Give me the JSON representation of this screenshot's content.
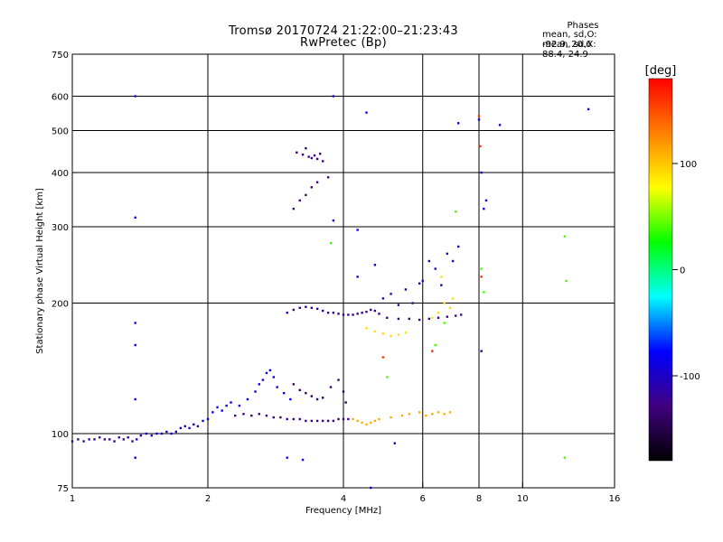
{
  "chart_data": {
    "type": "scatter",
    "title": "Tromsø 20170724 21:22:00–21:23:43",
    "subtitle": "RwPretec (Bp)",
    "stats": {
      "heading": "Phases",
      "line_o": "mean, sd,O: -92.9, 20.6",
      "line_x": "mean, sd,X:  88.4, 24.9"
    },
    "xlabel": "Frequency [MHz]",
    "ylabel": "Stationary phase Virtual Height [km]",
    "x_scale": "log",
    "y_scale": "log",
    "xlim": [
      1,
      16
    ],
    "ylim": [
      75,
      750
    ],
    "x_ticks": [
      1,
      2,
      4,
      6,
      8,
      10,
      16
    ],
    "x_tick_labels": [
      "1",
      "2",
      "4",
      "6",
      "8",
      "10",
      "16"
    ],
    "x_gridlines": [
      2,
      4,
      6,
      8,
      10
    ],
    "y_ticks": [
      75,
      100,
      200,
      300,
      400,
      500,
      600,
      750
    ],
    "y_tick_labels": [
      "75",
      "100",
      "200",
      "300",
      "400",
      "500",
      "600",
      "750"
    ],
    "y_gridlines": [
      100,
      200,
      300,
      400,
      500,
      600
    ],
    "grid": true,
    "colorbar": {
      "label": "[deg]",
      "range": [
        -180,
        180
      ],
      "ticks": [
        100,
        0,
        -100
      ],
      "tick_labels": [
        "100",
        "0",
        "-100"
      ],
      "colors": [
        "#ff0000",
        "#ff8000",
        "#ffff00",
        "#00ff00",
        "#00ffff",
        "#0000ff",
        "#400080",
        "#000000"
      ]
    },
    "series": [
      {
        "comment_phase": -115,
        "points": [
          [
            1.0,
            96
          ],
          [
            1.03,
            97
          ],
          [
            1.06,
            96
          ],
          [
            1.09,
            97
          ],
          [
            1.12,
            97
          ],
          [
            1.15,
            98
          ],
          [
            1.18,
            97
          ],
          [
            1.21,
            97
          ],
          [
            1.24,
            96
          ],
          [
            1.27,
            98
          ],
          [
            1.3,
            97
          ],
          [
            1.33,
            98
          ],
          [
            1.36,
            96
          ],
          [
            1.39,
            97
          ]
        ]
      },
      {
        "comment_phase": -105,
        "points": [
          [
            1.42,
            99
          ],
          [
            1.46,
            100
          ],
          [
            1.5,
            99
          ],
          [
            1.54,
            100
          ],
          [
            1.58,
            100
          ],
          [
            1.62,
            101
          ],
          [
            1.66,
            100
          ],
          [
            1.7,
            101
          ],
          [
            1.74,
            103
          ],
          [
            1.78,
            104
          ],
          [
            1.82,
            103
          ],
          [
            1.86,
            105
          ],
          [
            1.9,
            104
          ]
        ]
      },
      {
        "comment_phase": -130,
        "points": [
          [
            2.3,
            110
          ],
          [
            2.4,
            111
          ],
          [
            2.5,
            110
          ],
          [
            2.6,
            111
          ],
          [
            2.7,
            110
          ],
          [
            2.8,
            109
          ],
          [
            2.9,
            109
          ],
          [
            3.0,
            108
          ],
          [
            3.1,
            108
          ],
          [
            3.2,
            108
          ],
          [
            3.3,
            107
          ],
          [
            3.4,
            107
          ],
          [
            3.5,
            107
          ],
          [
            3.6,
            107
          ],
          [
            3.7,
            107
          ],
          [
            3.8,
            107
          ],
          [
            3.9,
            108
          ],
          [
            4.0,
            108
          ],
          [
            4.1,
            108
          ]
        ]
      },
      {
        "comment_phase": -80,
        "points": [
          [
            1.95,
            107
          ],
          [
            2.0,
            108
          ],
          [
            2.05,
            112
          ],
          [
            2.1,
            115
          ],
          [
            2.15,
            113
          ],
          [
            2.2,
            116
          ],
          [
            2.25,
            118
          ],
          [
            2.35,
            116
          ],
          [
            2.45,
            120
          ],
          [
            2.55,
            125
          ],
          [
            2.6,
            130
          ],
          [
            2.65,
            133
          ],
          [
            2.7,
            138
          ],
          [
            2.75,
            140
          ],
          [
            2.8,
            135
          ],
          [
            2.85,
            128
          ],
          [
            2.95,
            124
          ],
          [
            3.05,
            120
          ]
        ]
      },
      {
        "comment_phase": -140,
        "points": [
          [
            3.1,
            130
          ],
          [
            3.2,
            126
          ],
          [
            3.3,
            124
          ],
          [
            3.4,
            122
          ],
          [
            3.5,
            120
          ],
          [
            3.6,
            121
          ],
          [
            3.75,
            128
          ],
          [
            3.9,
            133
          ],
          [
            4.0,
            125
          ],
          [
            4.05,
            118
          ]
        ]
      },
      {
        "comment_phase": 110,
        "points": [
          [
            4.2,
            108
          ],
          [
            4.3,
            107
          ],
          [
            4.4,
            106
          ],
          [
            4.5,
            105
          ],
          [
            4.6,
            106
          ],
          [
            4.7,
            107
          ],
          [
            4.8,
            108
          ],
          [
            5.1,
            109
          ],
          [
            5.4,
            110
          ],
          [
            5.6,
            111
          ],
          [
            5.9,
            112
          ],
          [
            6.1,
            110
          ],
          [
            6.3,
            111
          ],
          [
            6.5,
            112
          ],
          [
            6.7,
            111
          ],
          [
            6.9,
            112
          ]
        ]
      },
      {
        "comment_phase": -120,
        "points": [
          [
            3.0,
            190
          ],
          [
            3.1,
            193
          ],
          [
            3.2,
            195
          ],
          [
            3.3,
            196
          ],
          [
            3.4,
            195
          ],
          [
            3.5,
            194
          ],
          [
            3.6,
            192
          ],
          [
            3.7,
            190
          ],
          [
            3.8,
            190
          ],
          [
            3.9,
            189
          ],
          [
            4.0,
            188
          ],
          [
            4.1,
            188
          ],
          [
            4.2,
            188
          ],
          [
            4.3,
            189
          ],
          [
            4.4,
            190
          ],
          [
            4.5,
            191
          ],
          [
            4.6,
            193
          ],
          [
            4.7,
            192
          ],
          [
            4.8,
            189
          ]
        ]
      },
      {
        "comment_phase": -125,
        "points": [
          [
            5.0,
            185
          ],
          [
            5.3,
            184
          ],
          [
            5.6,
            184
          ],
          [
            5.9,
            183
          ],
          [
            6.2,
            184
          ],
          [
            6.5,
            185
          ],
          [
            6.8,
            186
          ],
          [
            7.1,
            187
          ],
          [
            7.3,
            188
          ]
        ]
      },
      {
        "comment_phase": -110,
        "points": [
          [
            4.9,
            205
          ],
          [
            5.1,
            210
          ],
          [
            5.3,
            198
          ],
          [
            5.5,
            215
          ],
          [
            5.7,
            200
          ],
          [
            5.9,
            222
          ],
          [
            6.0,
            225
          ],
          [
            6.2,
            250
          ],
          [
            6.4,
            240
          ],
          [
            6.6,
            220
          ],
          [
            6.8,
            260
          ],
          [
            7.0,
            250
          ],
          [
            7.2,
            270
          ],
          [
            4.7,
            245
          ],
          [
            4.3,
            230
          ]
        ]
      },
      {
        "comment_phase": 90,
        "points": [
          [
            4.5,
            175
          ],
          [
            4.7,
            172
          ],
          [
            4.9,
            170
          ],
          [
            5.1,
            168
          ],
          [
            5.3,
            169
          ],
          [
            5.5,
            171
          ],
          [
            6.3,
            185
          ],
          [
            6.5,
            190
          ],
          [
            6.7,
            200
          ],
          [
            6.6,
            230
          ],
          [
            6.9,
            195
          ],
          [
            7.0,
            205
          ]
        ]
      },
      {
        "comment_phase": -130,
        "points": [
          [
            3.1,
            330
          ],
          [
            3.2,
            345
          ],
          [
            3.3,
            355
          ],
          [
            3.4,
            370
          ],
          [
            3.5,
            380
          ],
          [
            3.15,
            445
          ],
          [
            3.25,
            440
          ],
          [
            3.35,
            435
          ],
          [
            3.4,
            432
          ],
          [
            3.45,
            438
          ],
          [
            3.5,
            430
          ],
          [
            3.55,
            442
          ],
          [
            3.6,
            425
          ],
          [
            3.3,
            455
          ],
          [
            3.7,
            390
          ]
        ]
      },
      {
        "comment_phase": -95,
        "points": [
          [
            1.38,
            600
          ],
          [
            1.38,
            315
          ],
          [
            1.38,
            180
          ],
          [
            1.38,
            160
          ],
          [
            1.38,
            120
          ],
          [
            1.38,
            88
          ],
          [
            3.8,
            600
          ],
          [
            3.8,
            310
          ],
          [
            4.3,
            295
          ],
          [
            3.0,
            88
          ],
          [
            3.25,
            87
          ],
          [
            5.2,
            95
          ],
          [
            4.5,
            550
          ],
          [
            7.2,
            520
          ],
          [
            8.0,
            530
          ],
          [
            8.1,
            400
          ],
          [
            8.2,
            330
          ],
          [
            8.3,
            345
          ],
          [
            8.9,
            515
          ],
          [
            14.0,
            560
          ],
          [
            8.1,
            155
          ],
          [
            4.6,
            75
          ]
        ]
      },
      {
        "comment_phase": 40,
        "points": [
          [
            3.75,
            275
          ],
          [
            7.1,
            325
          ],
          [
            8.1,
            240
          ],
          [
            8.2,
            212
          ],
          [
            12.4,
            285
          ],
          [
            12.5,
            225
          ],
          [
            12.4,
            88
          ],
          [
            6.7,
            180
          ],
          [
            6.4,
            160
          ],
          [
            5.0,
            135
          ]
        ]
      },
      {
        "comment_phase": 160,
        "points": [
          [
            8.0,
            540
          ],
          [
            8.05,
            460
          ],
          [
            8.1,
            230
          ],
          [
            6.3,
            155
          ],
          [
            4.9,
            150
          ]
        ]
      }
    ]
  }
}
